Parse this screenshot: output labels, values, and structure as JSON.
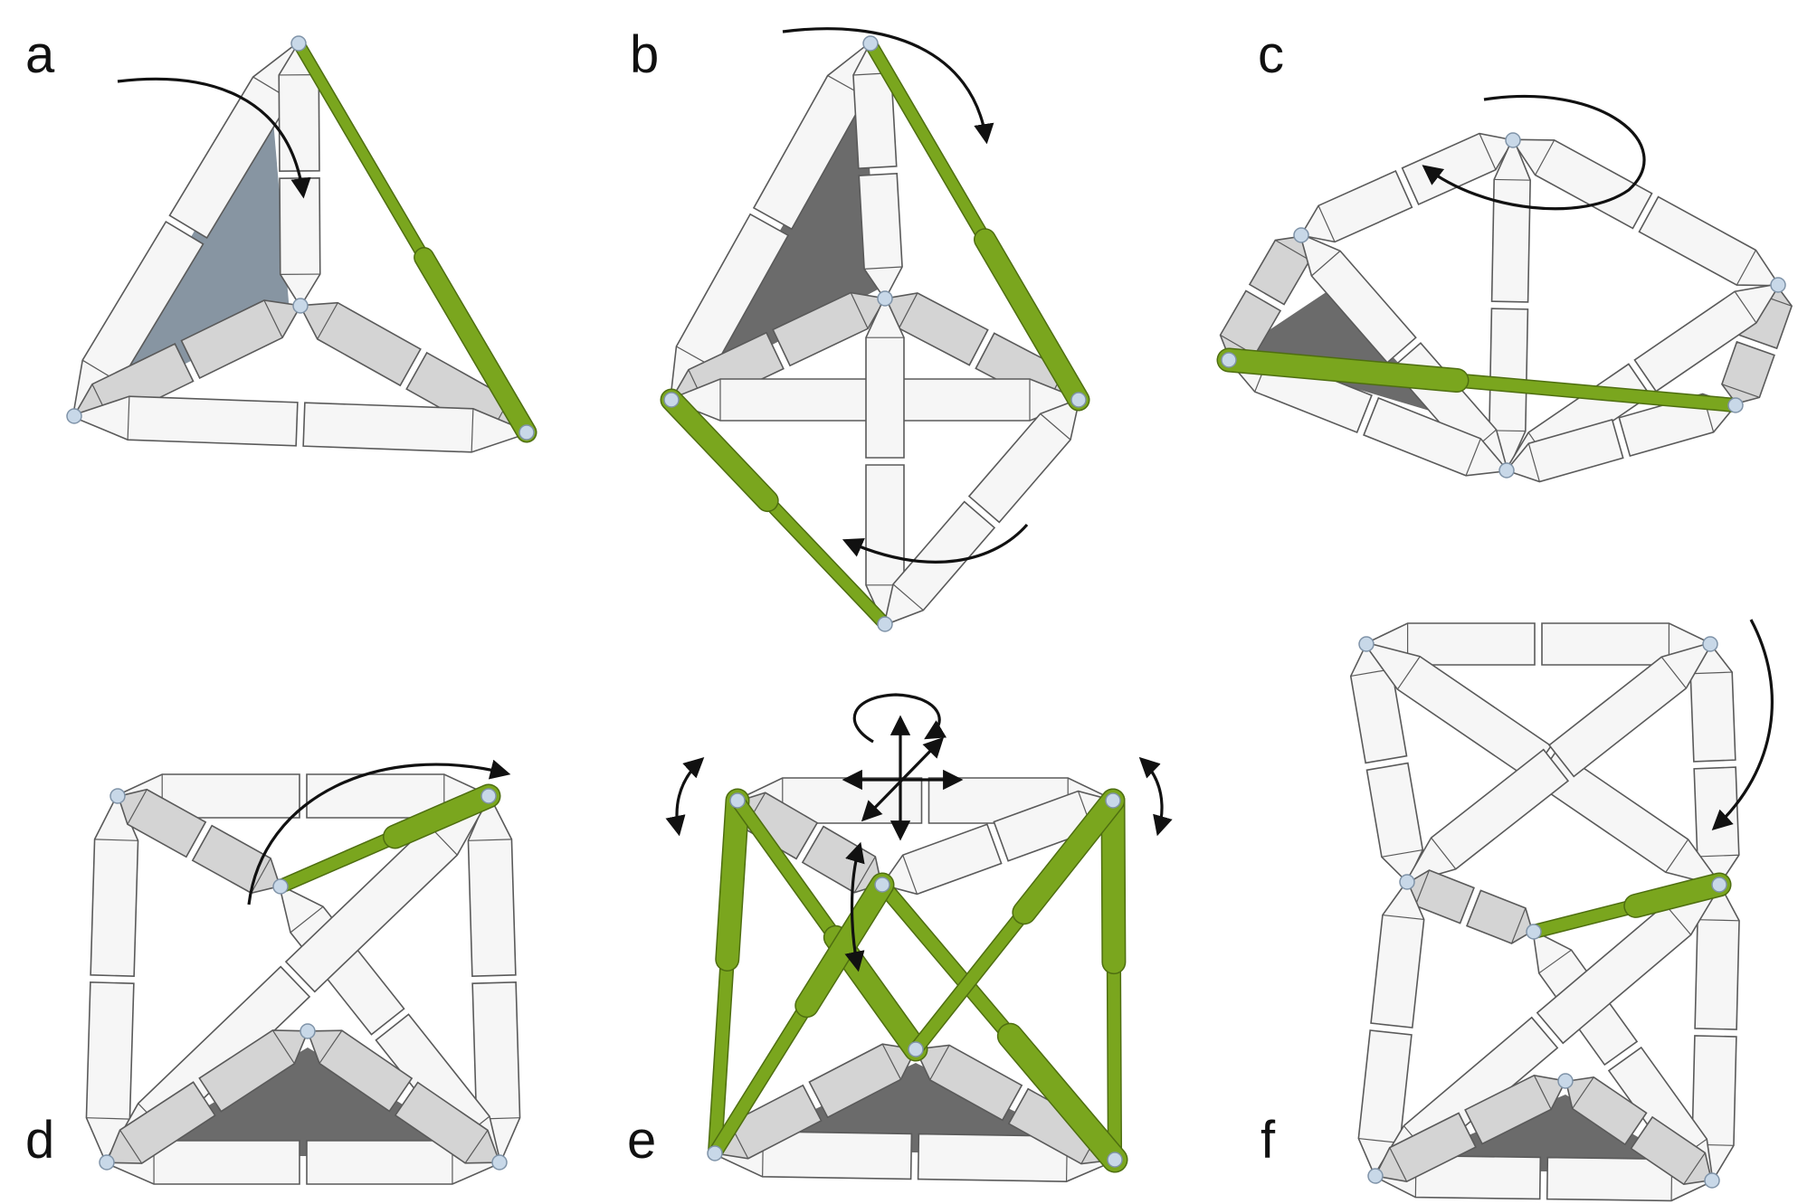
{
  "panels": [
    {
      "id": "a",
      "label": "a"
    },
    {
      "id": "b",
      "label": "b"
    },
    {
      "id": "c",
      "label": "c"
    },
    {
      "id": "d",
      "label": "d"
    },
    {
      "id": "e",
      "label": "e"
    },
    {
      "id": "f",
      "label": "f"
    }
  ],
  "colors": {
    "green_strut": "#7aa61e",
    "white_strut": "#f6f6f6",
    "shaded_strut": "#d4d4d4",
    "node": "#c8d8e8",
    "face": "#6b6b6b",
    "arrow": "#111111"
  }
}
